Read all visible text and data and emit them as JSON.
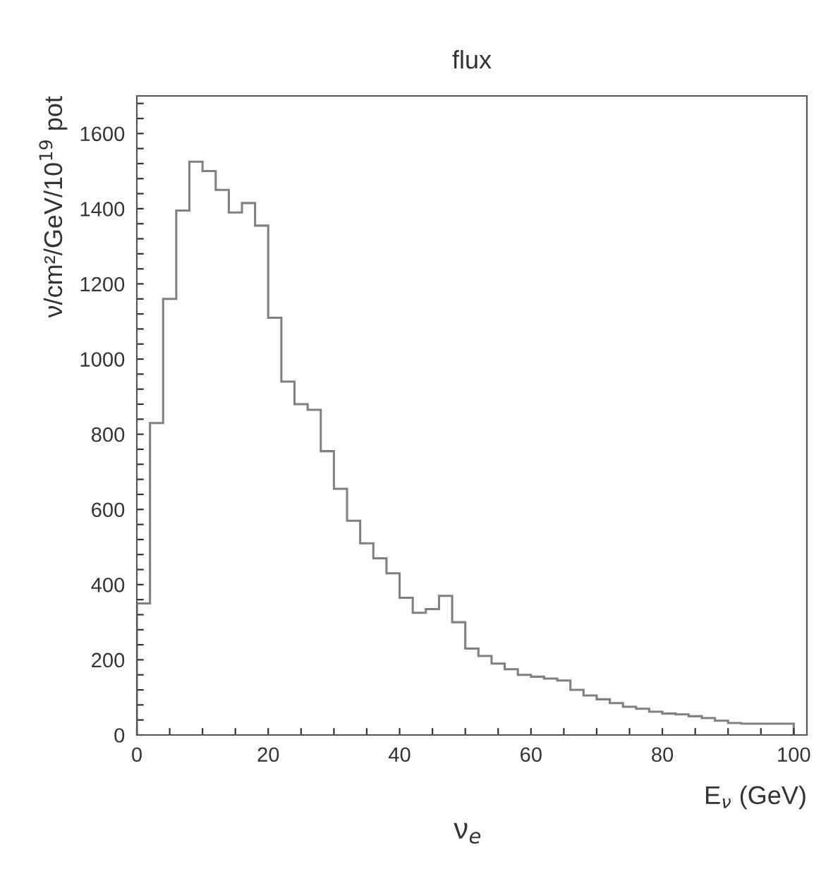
{
  "chart_data": {
    "type": "histogram",
    "title": "flux",
    "xlabel": "E$_{ν}$ (GeV)",
    "ylabel": "ν/cm²/GeV/10$^{19}$ pot",
    "annotations": [
      "ν$_{e}$"
    ],
    "color": "#808080",
    "bins": [
      0,
      2,
      4,
      6,
      8,
      10,
      12,
      14,
      16,
      18,
      20,
      22,
      24,
      26,
      28,
      30,
      32,
      34,
      36,
      38,
      40,
      42,
      44,
      46,
      48,
      50,
      52,
      54,
      56,
      58,
      60,
      62,
      64,
      66,
      68,
      70,
      72,
      74,
      76,
      78,
      80,
      82,
      84,
      86,
      88,
      90,
      92,
      94,
      96,
      98,
      100
    ],
    "values": [
      350,
      830,
      1160,
      1395,
      1525,
      1500,
      1450,
      1390,
      1415,
      1355,
      1110,
      940,
      880,
      865,
      755,
      655,
      570,
      510,
      470,
      430,
      365,
      325,
      335,
      370,
      300,
      230,
      210,
      190,
      175,
      160,
      155,
      150,
      145,
      120,
      105,
      95,
      85,
      75,
      70,
      62,
      57,
      55,
      50,
      45,
      38,
      32,
      30,
      30,
      30,
      30
    ],
    "xlim": [
      0,
      102
    ],
    "ylim": [
      0,
      1700
    ],
    "xticks": [
      0,
      {
        "value": 5,
        "label": null
      },
      {
        "value": 10,
        "label": null
      },
      {
        "value": 15,
        "label": null
      },
      20,
      {
        "value": 25,
        "label": null
      },
      {
        "value": 30,
        "label": null
      },
      {
        "value": 35,
        "label": null
      },
      40,
      {
        "value": 45,
        "label": null
      },
      {
        "value": 50,
        "label": null
      },
      {
        "value": 55,
        "label": null
      },
      60,
      {
        "value": 65,
        "label": null
      },
      {
        "value": 70,
        "label": null
      },
      {
        "value": 75,
        "label": null
      },
      80,
      {
        "value": 85,
        "label": null
      },
      {
        "value": 90,
        "label": null
      },
      {
        "value": 95,
        "label": null
      },
      100
    ],
    "yticks": [
      0,
      {
        "value": 40,
        "label": null
      },
      {
        "value": 80,
        "label": null
      },
      {
        "value": 120,
        "label": null
      },
      {
        "value": 160,
        "label": null
      },
      200,
      {
        "value": 240,
        "label": null
      },
      {
        "value": 280,
        "label": null
      },
      {
        "value": 320,
        "label": null
      },
      {
        "value": 360,
        "label": null
      },
      400,
      {
        "value": 440,
        "label": null
      },
      {
        "value": 480,
        "label": null
      },
      {
        "value": 520,
        "label": null
      },
      {
        "value": 560,
        "label": null
      },
      600,
      {
        "value": 640,
        "label": null
      },
      {
        "value": 680,
        "label": null
      },
      {
        "value": 720,
        "label": null
      },
      {
        "value": 760,
        "label": null
      },
      800,
      {
        "value": 840,
        "label": null
      },
      {
        "value": 880,
        "label": null
      },
      {
        "value": 920,
        "label": null
      },
      {
        "value": 960,
        "label": null
      },
      1000,
      {
        "value": 1040,
        "label": null
      },
      {
        "value": 1080,
        "label": null
      },
      {
        "value": 1120,
        "label": null
      },
      {
        "value": 1160,
        "label": null
      },
      1200,
      {
        "value": 1240,
        "label": null
      },
      {
        "value": 1280,
        "label": null
      },
      {
        "value": 1320,
        "label": null
      },
      {
        "value": 1360,
        "label": null
      },
      1400,
      {
        "value": 1440,
        "label": null
      },
      {
        "value": 1480,
        "label": null
      },
      {
        "value": 1520,
        "label": null
      },
      {
        "value": 1560,
        "label": null
      },
      1600,
      {
        "value": 1640,
        "label": null
      },
      {
        "value": 1680,
        "label": null
      }
    ],
    "grid": false,
    "legend": false
  }
}
